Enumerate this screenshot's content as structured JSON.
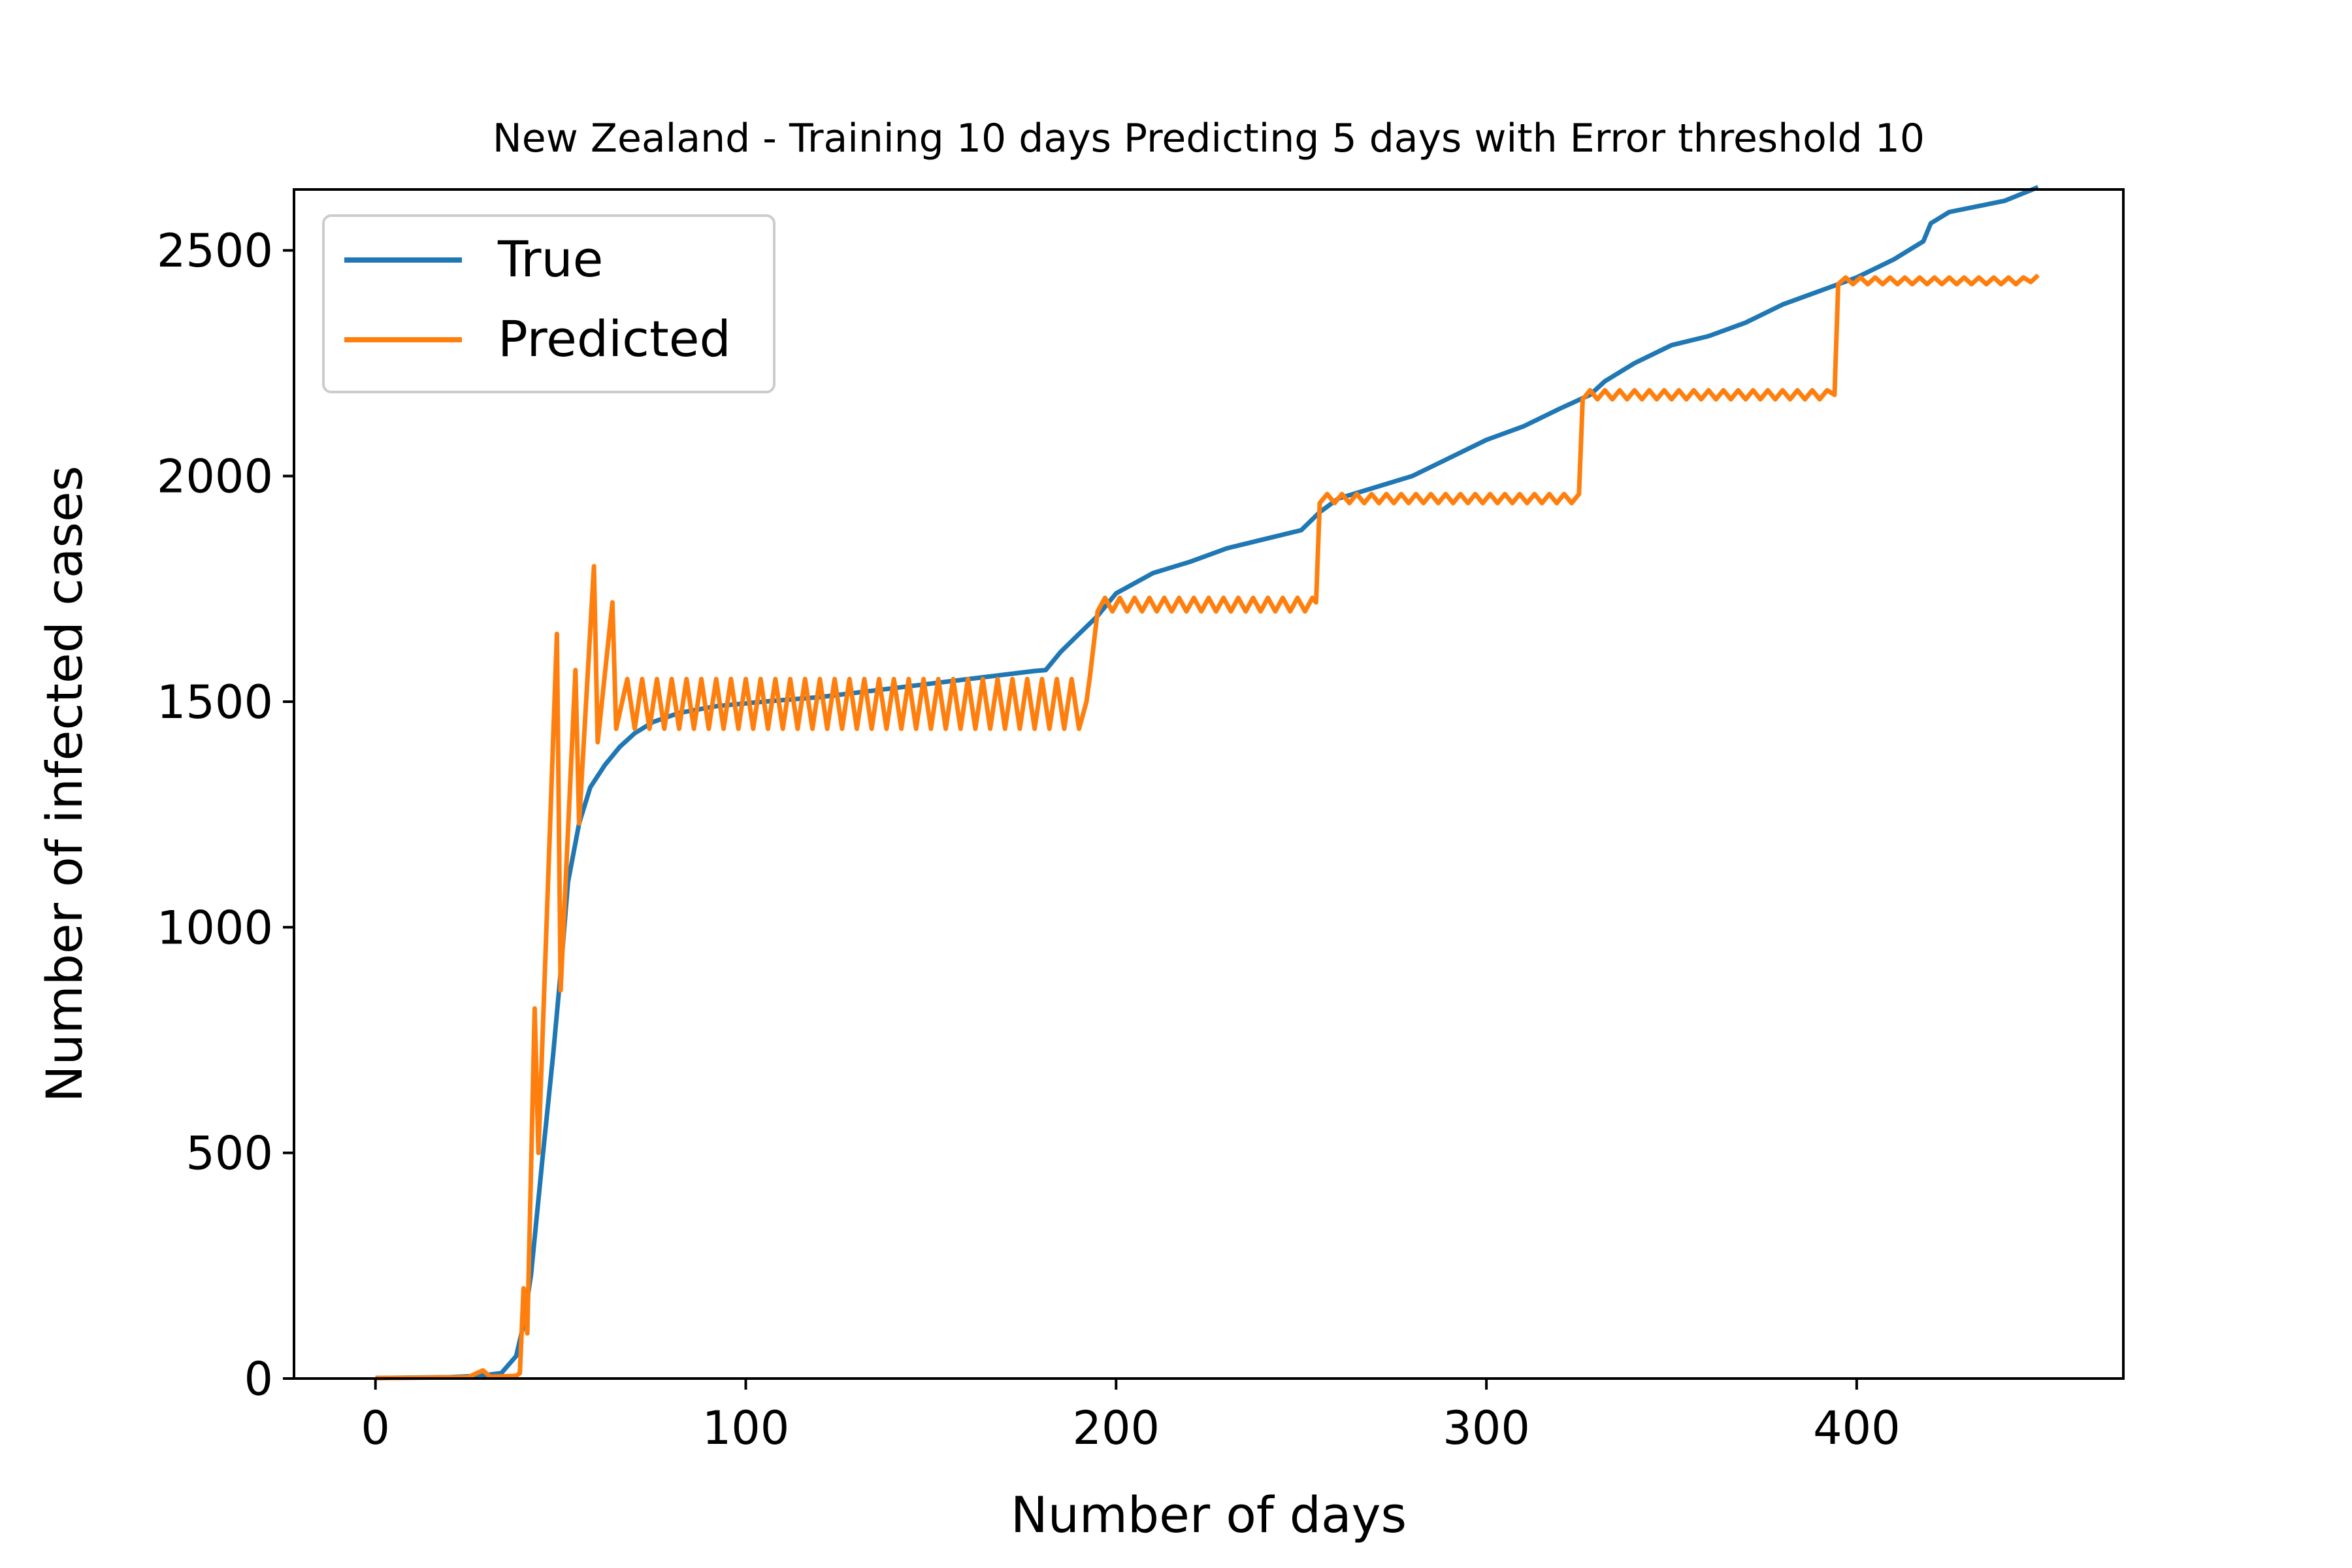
{
  "chart_data": {
    "type": "line",
    "title": "New Zealand - Training 10 days Predicting 5 days with Error threshold 10",
    "xlabel": "Number of days",
    "ylabel": "Number of infected cases",
    "xlim": [
      -22,
      472
    ],
    "ylim": [
      0,
      2635
    ],
    "x_ticks": [
      0,
      100,
      200,
      300,
      400
    ],
    "y_ticks": [
      0,
      500,
      1000,
      1500,
      2000,
      2500
    ],
    "grid": false,
    "legend_position": "upper-left",
    "series": [
      {
        "name": "True",
        "color": "#1f77b4",
        "points": [
          [
            0,
            1
          ],
          [
            20,
            3
          ],
          [
            28,
            6
          ],
          [
            34,
            12
          ],
          [
            38,
            50
          ],
          [
            40,
            120
          ],
          [
            42,
            230
          ],
          [
            45,
            480
          ],
          [
            48,
            720
          ],
          [
            50,
            900
          ],
          [
            52,
            1100
          ],
          [
            55,
            1230
          ],
          [
            58,
            1310
          ],
          [
            62,
            1360
          ],
          [
            66,
            1400
          ],
          [
            70,
            1430
          ],
          [
            75,
            1455
          ],
          [
            82,
            1475
          ],
          [
            92,
            1490
          ],
          [
            105,
            1500
          ],
          [
            120,
            1510
          ],
          [
            135,
            1525
          ],
          [
            150,
            1540
          ],
          [
            165,
            1555
          ],
          [
            178,
            1568
          ],
          [
            181,
            1570
          ],
          [
            185,
            1610
          ],
          [
            190,
            1650
          ],
          [
            195,
            1690
          ],
          [
            200,
            1740
          ],
          [
            210,
            1785
          ],
          [
            220,
            1810
          ],
          [
            230,
            1840
          ],
          [
            240,
            1860
          ],
          [
            250,
            1880
          ],
          [
            255,
            1920
          ],
          [
            260,
            1950
          ],
          [
            270,
            1975
          ],
          [
            280,
            2000
          ],
          [
            290,
            2040
          ],
          [
            300,
            2080
          ],
          [
            310,
            2110
          ],
          [
            320,
            2150
          ],
          [
            328,
            2180
          ],
          [
            332,
            2210
          ],
          [
            340,
            2250
          ],
          [
            350,
            2290
          ],
          [
            360,
            2310
          ],
          [
            370,
            2340
          ],
          [
            380,
            2380
          ],
          [
            390,
            2410
          ],
          [
            400,
            2440
          ],
          [
            410,
            2480
          ],
          [
            418,
            2520
          ],
          [
            420,
            2560
          ],
          [
            425,
            2585
          ],
          [
            440,
            2610
          ],
          [
            449,
            2640
          ]
        ]
      },
      {
        "name": "Predicted",
        "color": "#ff7f0e",
        "points": [
          [
            0,
            1
          ],
          [
            25,
            3
          ],
          [
            29,
            18
          ],
          [
            31,
            4
          ],
          [
            38,
            6
          ],
          [
            39,
            12
          ],
          [
            40,
            200
          ],
          [
            41,
            100
          ],
          [
            43,
            820
          ],
          [
            44,
            500
          ],
          [
            49,
            1650
          ],
          [
            50,
            860
          ],
          [
            54,
            1570
          ],
          [
            55,
            1230
          ],
          [
            59,
            1800
          ],
          [
            60,
            1410
          ],
          [
            64,
            1720
          ],
          [
            65,
            1440
          ],
          [
            68,
            1550
          ],
          [
            70,
            1440
          ],
          [
            72,
            1550
          ],
          [
            74,
            1440
          ],
          [
            76,
            1550
          ],
          [
            78,
            1440
          ],
          [
            80,
            1550
          ],
          [
            82,
            1440
          ],
          [
            84,
            1550
          ],
          [
            86,
            1440
          ],
          [
            88,
            1550
          ],
          [
            90,
            1440
          ],
          [
            92,
            1550
          ],
          [
            94,
            1440
          ],
          [
            96,
            1550
          ],
          [
            98,
            1440
          ],
          [
            100,
            1550
          ],
          [
            102,
            1440
          ],
          [
            104,
            1550
          ],
          [
            106,
            1440
          ],
          [
            108,
            1550
          ],
          [
            110,
            1440
          ],
          [
            112,
            1550
          ],
          [
            114,
            1440
          ],
          [
            116,
            1550
          ],
          [
            118,
            1440
          ],
          [
            120,
            1550
          ],
          [
            122,
            1440
          ],
          [
            124,
            1550
          ],
          [
            126,
            1440
          ],
          [
            128,
            1550
          ],
          [
            130,
            1440
          ],
          [
            132,
            1550
          ],
          [
            134,
            1440
          ],
          [
            136,
            1550
          ],
          [
            138,
            1440
          ],
          [
            140,
            1550
          ],
          [
            142,
            1440
          ],
          [
            144,
            1550
          ],
          [
            146,
            1440
          ],
          [
            148,
            1550
          ],
          [
            150,
            1440
          ],
          [
            152,
            1550
          ],
          [
            154,
            1440
          ],
          [
            156,
            1550
          ],
          [
            158,
            1440
          ],
          [
            160,
            1550
          ],
          [
            162,
            1440
          ],
          [
            164,
            1550
          ],
          [
            166,
            1440
          ],
          [
            168,
            1550
          ],
          [
            170,
            1440
          ],
          [
            172,
            1550
          ],
          [
            174,
            1440
          ],
          [
            176,
            1550
          ],
          [
            178,
            1440
          ],
          [
            180,
            1550
          ],
          [
            182,
            1440
          ],
          [
            184,
            1550
          ],
          [
            186,
            1440
          ],
          [
            188,
            1550
          ],
          [
            190,
            1440
          ],
          [
            192,
            1500
          ],
          [
            193,
            1560
          ],
          [
            195,
            1700
          ],
          [
            197,
            1730
          ],
          [
            199,
            1700
          ],
          [
            201,
            1730
          ],
          [
            203,
            1700
          ],
          [
            205,
            1730
          ],
          [
            207,
            1700
          ],
          [
            209,
            1730
          ],
          [
            211,
            1700
          ],
          [
            213,
            1730
          ],
          [
            215,
            1700
          ],
          [
            217,
            1730
          ],
          [
            219,
            1700
          ],
          [
            221,
            1730
          ],
          [
            223,
            1700
          ],
          [
            225,
            1730
          ],
          [
            227,
            1700
          ],
          [
            229,
            1730
          ],
          [
            231,
            1700
          ],
          [
            233,
            1730
          ],
          [
            235,
            1700
          ],
          [
            237,
            1730
          ],
          [
            239,
            1700
          ],
          [
            241,
            1730
          ],
          [
            243,
            1700
          ],
          [
            245,
            1730
          ],
          [
            247,
            1700
          ],
          [
            249,
            1730
          ],
          [
            251,
            1700
          ],
          [
            253,
            1730
          ],
          [
            254,
            1720
          ],
          [
            255,
            1940
          ],
          [
            257,
            1960
          ],
          [
            259,
            1940
          ],
          [
            261,
            1960
          ],
          [
            263,
            1940
          ],
          [
            265,
            1960
          ],
          [
            267,
            1940
          ],
          [
            269,
            1960
          ],
          [
            271,
            1940
          ],
          [
            273,
            1960
          ],
          [
            275,
            1940
          ],
          [
            277,
            1960
          ],
          [
            279,
            1940
          ],
          [
            281,
            1960
          ],
          [
            283,
            1940
          ],
          [
            285,
            1960
          ],
          [
            287,
            1940
          ],
          [
            289,
            1960
          ],
          [
            291,
            1940
          ],
          [
            293,
            1960
          ],
          [
            295,
            1940
          ],
          [
            297,
            1960
          ],
          [
            299,
            1940
          ],
          [
            301,
            1960
          ],
          [
            303,
            1940
          ],
          [
            305,
            1960
          ],
          [
            307,
            1940
          ],
          [
            309,
            1960
          ],
          [
            311,
            1940
          ],
          [
            313,
            1960
          ],
          [
            315,
            1940
          ],
          [
            317,
            1960
          ],
          [
            319,
            1940
          ],
          [
            321,
            1960
          ],
          [
            323,
            1940
          ],
          [
            325,
            1960
          ],
          [
            326,
            2170
          ],
          [
            328,
            2190
          ],
          [
            330,
            2170
          ],
          [
            332,
            2190
          ],
          [
            334,
            2170
          ],
          [
            336,
            2190
          ],
          [
            338,
            2170
          ],
          [
            340,
            2190
          ],
          [
            342,
            2170
          ],
          [
            344,
            2190
          ],
          [
            346,
            2170
          ],
          [
            348,
            2190
          ],
          [
            350,
            2170
          ],
          [
            352,
            2190
          ],
          [
            354,
            2170
          ],
          [
            356,
            2190
          ],
          [
            358,
            2170
          ],
          [
            360,
            2190
          ],
          [
            362,
            2170
          ],
          [
            364,
            2190
          ],
          [
            366,
            2170
          ],
          [
            368,
            2190
          ],
          [
            370,
            2170
          ],
          [
            372,
            2190
          ],
          [
            374,
            2170
          ],
          [
            376,
            2190
          ],
          [
            378,
            2170
          ],
          [
            380,
            2190
          ],
          [
            382,
            2170
          ],
          [
            384,
            2190
          ],
          [
            386,
            2170
          ],
          [
            388,
            2190
          ],
          [
            390,
            2170
          ],
          [
            392,
            2190
          ],
          [
            394,
            2180
          ],
          [
            395,
            2425
          ],
          [
            397,
            2440
          ],
          [
            399,
            2425
          ],
          [
            401,
            2440
          ],
          [
            403,
            2425
          ],
          [
            405,
            2440
          ],
          [
            407,
            2425
          ],
          [
            409,
            2440
          ],
          [
            411,
            2425
          ],
          [
            413,
            2440
          ],
          [
            415,
            2425
          ],
          [
            417,
            2440
          ],
          [
            419,
            2425
          ],
          [
            421,
            2440
          ],
          [
            423,
            2425
          ],
          [
            425,
            2440
          ],
          [
            427,
            2425
          ],
          [
            429,
            2440
          ],
          [
            431,
            2425
          ],
          [
            433,
            2440
          ],
          [
            435,
            2425
          ],
          [
            437,
            2440
          ],
          [
            439,
            2425
          ],
          [
            441,
            2440
          ],
          [
            443,
            2425
          ],
          [
            445,
            2440
          ],
          [
            447,
            2430
          ],
          [
            449,
            2445
          ]
        ]
      }
    ]
  }
}
